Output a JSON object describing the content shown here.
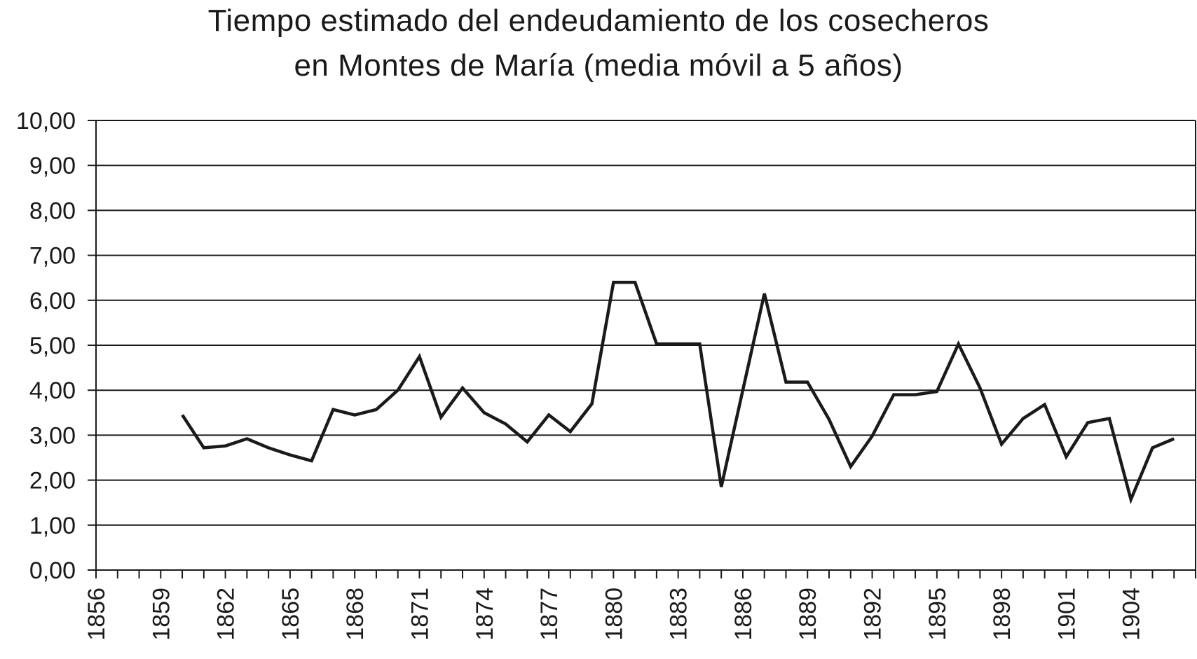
{
  "chart_data": {
    "type": "line",
    "title_line1": "Tiempo estimado del endeudamiento de los cosecheros",
    "title_line2": "en Montes de María (media móvil a 5 años)",
    "xlabel": "",
    "ylabel": "",
    "xlim": [
      1856,
      1907
    ],
    "ylim": [
      0,
      10
    ],
    "grid": true,
    "line_color": "#1a1a1a",
    "y_ticks": [
      {
        "value": 0,
        "label": "0,00"
      },
      {
        "value": 1,
        "label": "1,00"
      },
      {
        "value": 2,
        "label": "2,00"
      },
      {
        "value": 3,
        "label": "3,00"
      },
      {
        "value": 4,
        "label": "4,00"
      },
      {
        "value": 5,
        "label": "5,00"
      },
      {
        "value": 6,
        "label": "6,00"
      },
      {
        "value": 7,
        "label": "7,00"
      },
      {
        "value": 8,
        "label": "8,00"
      },
      {
        "value": 9,
        "label": "9,00"
      },
      {
        "value": 10,
        "label": "10,00"
      }
    ],
    "x_tick_labels": [
      {
        "value": 1856,
        "label": "1856"
      },
      {
        "value": 1859,
        "label": "1859"
      },
      {
        "value": 1862,
        "label": "1862"
      },
      {
        "value": 1865,
        "label": "1865"
      },
      {
        "value": 1868,
        "label": "1868"
      },
      {
        "value": 1871,
        "label": "1871"
      },
      {
        "value": 1874,
        "label": "1874"
      },
      {
        "value": 1877,
        "label": "1877"
      },
      {
        "value": 1880,
        "label": "1880"
      },
      {
        "value": 1883,
        "label": "1883"
      },
      {
        "value": 1886,
        "label": "1886"
      },
      {
        "value": 1889,
        "label": "1889"
      },
      {
        "value": 1892,
        "label": "1892"
      },
      {
        "value": 1895,
        "label": "1895"
      },
      {
        "value": 1898,
        "label": "1898"
      },
      {
        "value": 1901,
        "label": "1901"
      },
      {
        "value": 1904,
        "label": "1904"
      }
    ],
    "series": [
      {
        "x": [
          1860,
          1861,
          1862,
          1863,
          1864,
          1865,
          1866,
          1867,
          1868,
          1869,
          1870,
          1871,
          1872,
          1873,
          1874,
          1875,
          1876,
          1877,
          1878,
          1879,
          1880,
          1881,
          1882,
          1883,
          1884,
          1885,
          1886,
          1887,
          1888,
          1889,
          1890,
          1891,
          1892,
          1893,
          1894,
          1895,
          1896,
          1897,
          1898,
          1899,
          1900,
          1901,
          1902,
          1903,
          1904,
          1905,
          1906
        ],
        "values": [
          3.45,
          2.72,
          2.76,
          2.92,
          2.72,
          2.56,
          2.43,
          3.57,
          3.45,
          3.57,
          4.0,
          4.75,
          3.4,
          4.05,
          3.5,
          3.25,
          2.85,
          3.45,
          3.08,
          3.7,
          6.4,
          6.4,
          5.03,
          5.03,
          5.03,
          1.85,
          4.0,
          6.15,
          4.18,
          4.18,
          3.35,
          2.3,
          2.98,
          3.9,
          3.9,
          3.97,
          5.03,
          4.05,
          2.8,
          3.37,
          3.68,
          2.52,
          3.28,
          3.37,
          1.57,
          2.72,
          2.92
        ]
      }
    ]
  }
}
